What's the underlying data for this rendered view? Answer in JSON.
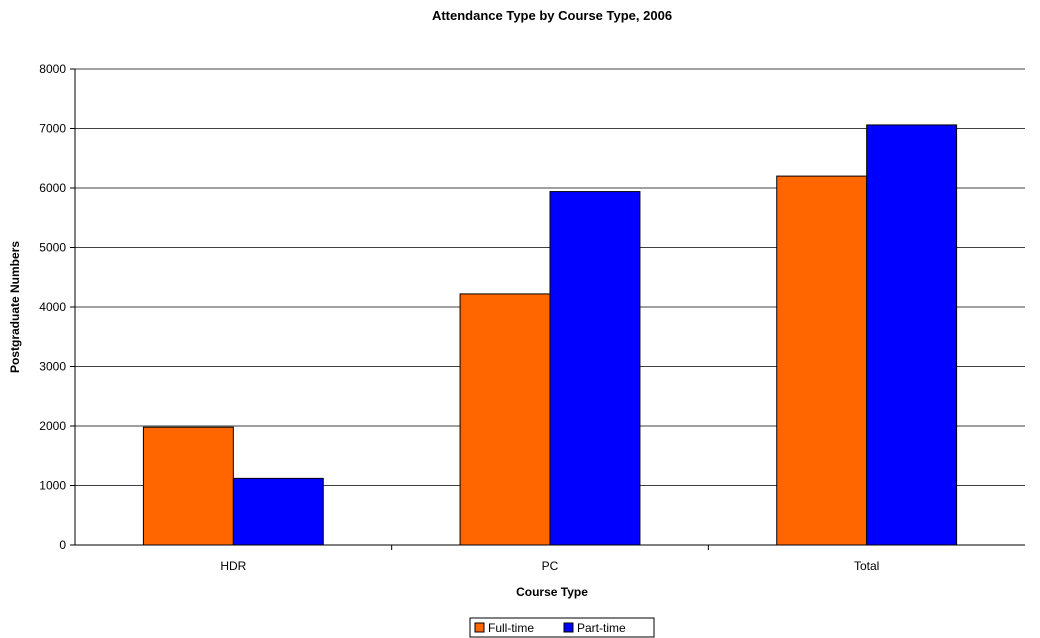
{
  "chart_data": {
    "type": "bar",
    "title": "Attendance Type by Course Type, 2006",
    "xlabel": "Course Type",
    "ylabel": "Postgraduate Numbers",
    "categories": [
      "HDR",
      "PC",
      "Total"
    ],
    "series": [
      {
        "name": "Full-time",
        "values": [
          1980,
          4220,
          6200
        ],
        "color": "#ff6600"
      },
      {
        "name": "Part-time",
        "values": [
          1120,
          5940,
          7060
        ],
        "color": "#0000ff"
      }
    ],
    "ylim": [
      0,
      8000
    ],
    "yticks": [
      0,
      1000,
      2000,
      3000,
      4000,
      5000,
      6000,
      7000,
      8000
    ],
    "grid": true,
    "legend_position": "bottom"
  }
}
